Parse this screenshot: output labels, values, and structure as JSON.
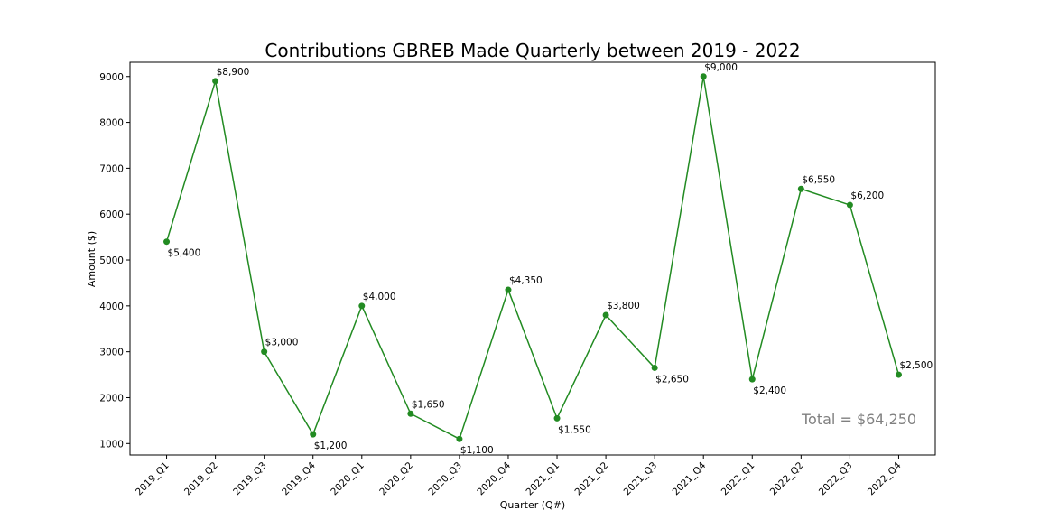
{
  "chart_data": {
    "type": "line",
    "title": "Contributions GBREB Made Quarterly between 2019 - 2022",
    "xlabel": "Quarter (Q#)",
    "ylabel": "Amount ($)",
    "categories": [
      "2019_Q1",
      "2019_Q2",
      "2019_Q3",
      "2019_Q4",
      "2020_Q1",
      "2020_Q2",
      "2020_Q3",
      "2020_Q4",
      "2021_Q1",
      "2021_Q2",
      "2021_Q3",
      "2021_Q4",
      "2022_Q1",
      "2022_Q2",
      "2022_Q3",
      "2022_Q4"
    ],
    "series": [
      {
        "values": [
          5400,
          8900,
          3000,
          1200,
          4000,
          1650,
          1100,
          4350,
          1550,
          3800,
          2650,
          9000,
          2400,
          6550,
          6200,
          2500
        ],
        "color": "#228b22"
      }
    ],
    "data_labels": [
      "$5,400",
      "$8,900",
      "$3,000",
      "$1,200",
      "$4,000",
      "$1,650",
      "$1,100",
      "$4,350",
      "$1,550",
      "$3,800",
      "$2,650",
      "$9,000",
      "$2,400",
      "$6,550",
      "$6,200",
      "$2,500"
    ],
    "label_positions": [
      "below",
      "above",
      "above",
      "below",
      "above",
      "above",
      "below",
      "above",
      "below",
      "above",
      "below",
      "above",
      "below",
      "above",
      "above",
      "above"
    ],
    "yticks": [
      1000,
      2000,
      3000,
      4000,
      5000,
      6000,
      7000,
      8000,
      9000
    ],
    "ylim": [
      750,
      9310
    ],
    "grid": false,
    "annotation": "Total = $64,250",
    "annotation_color": "#808080"
  }
}
